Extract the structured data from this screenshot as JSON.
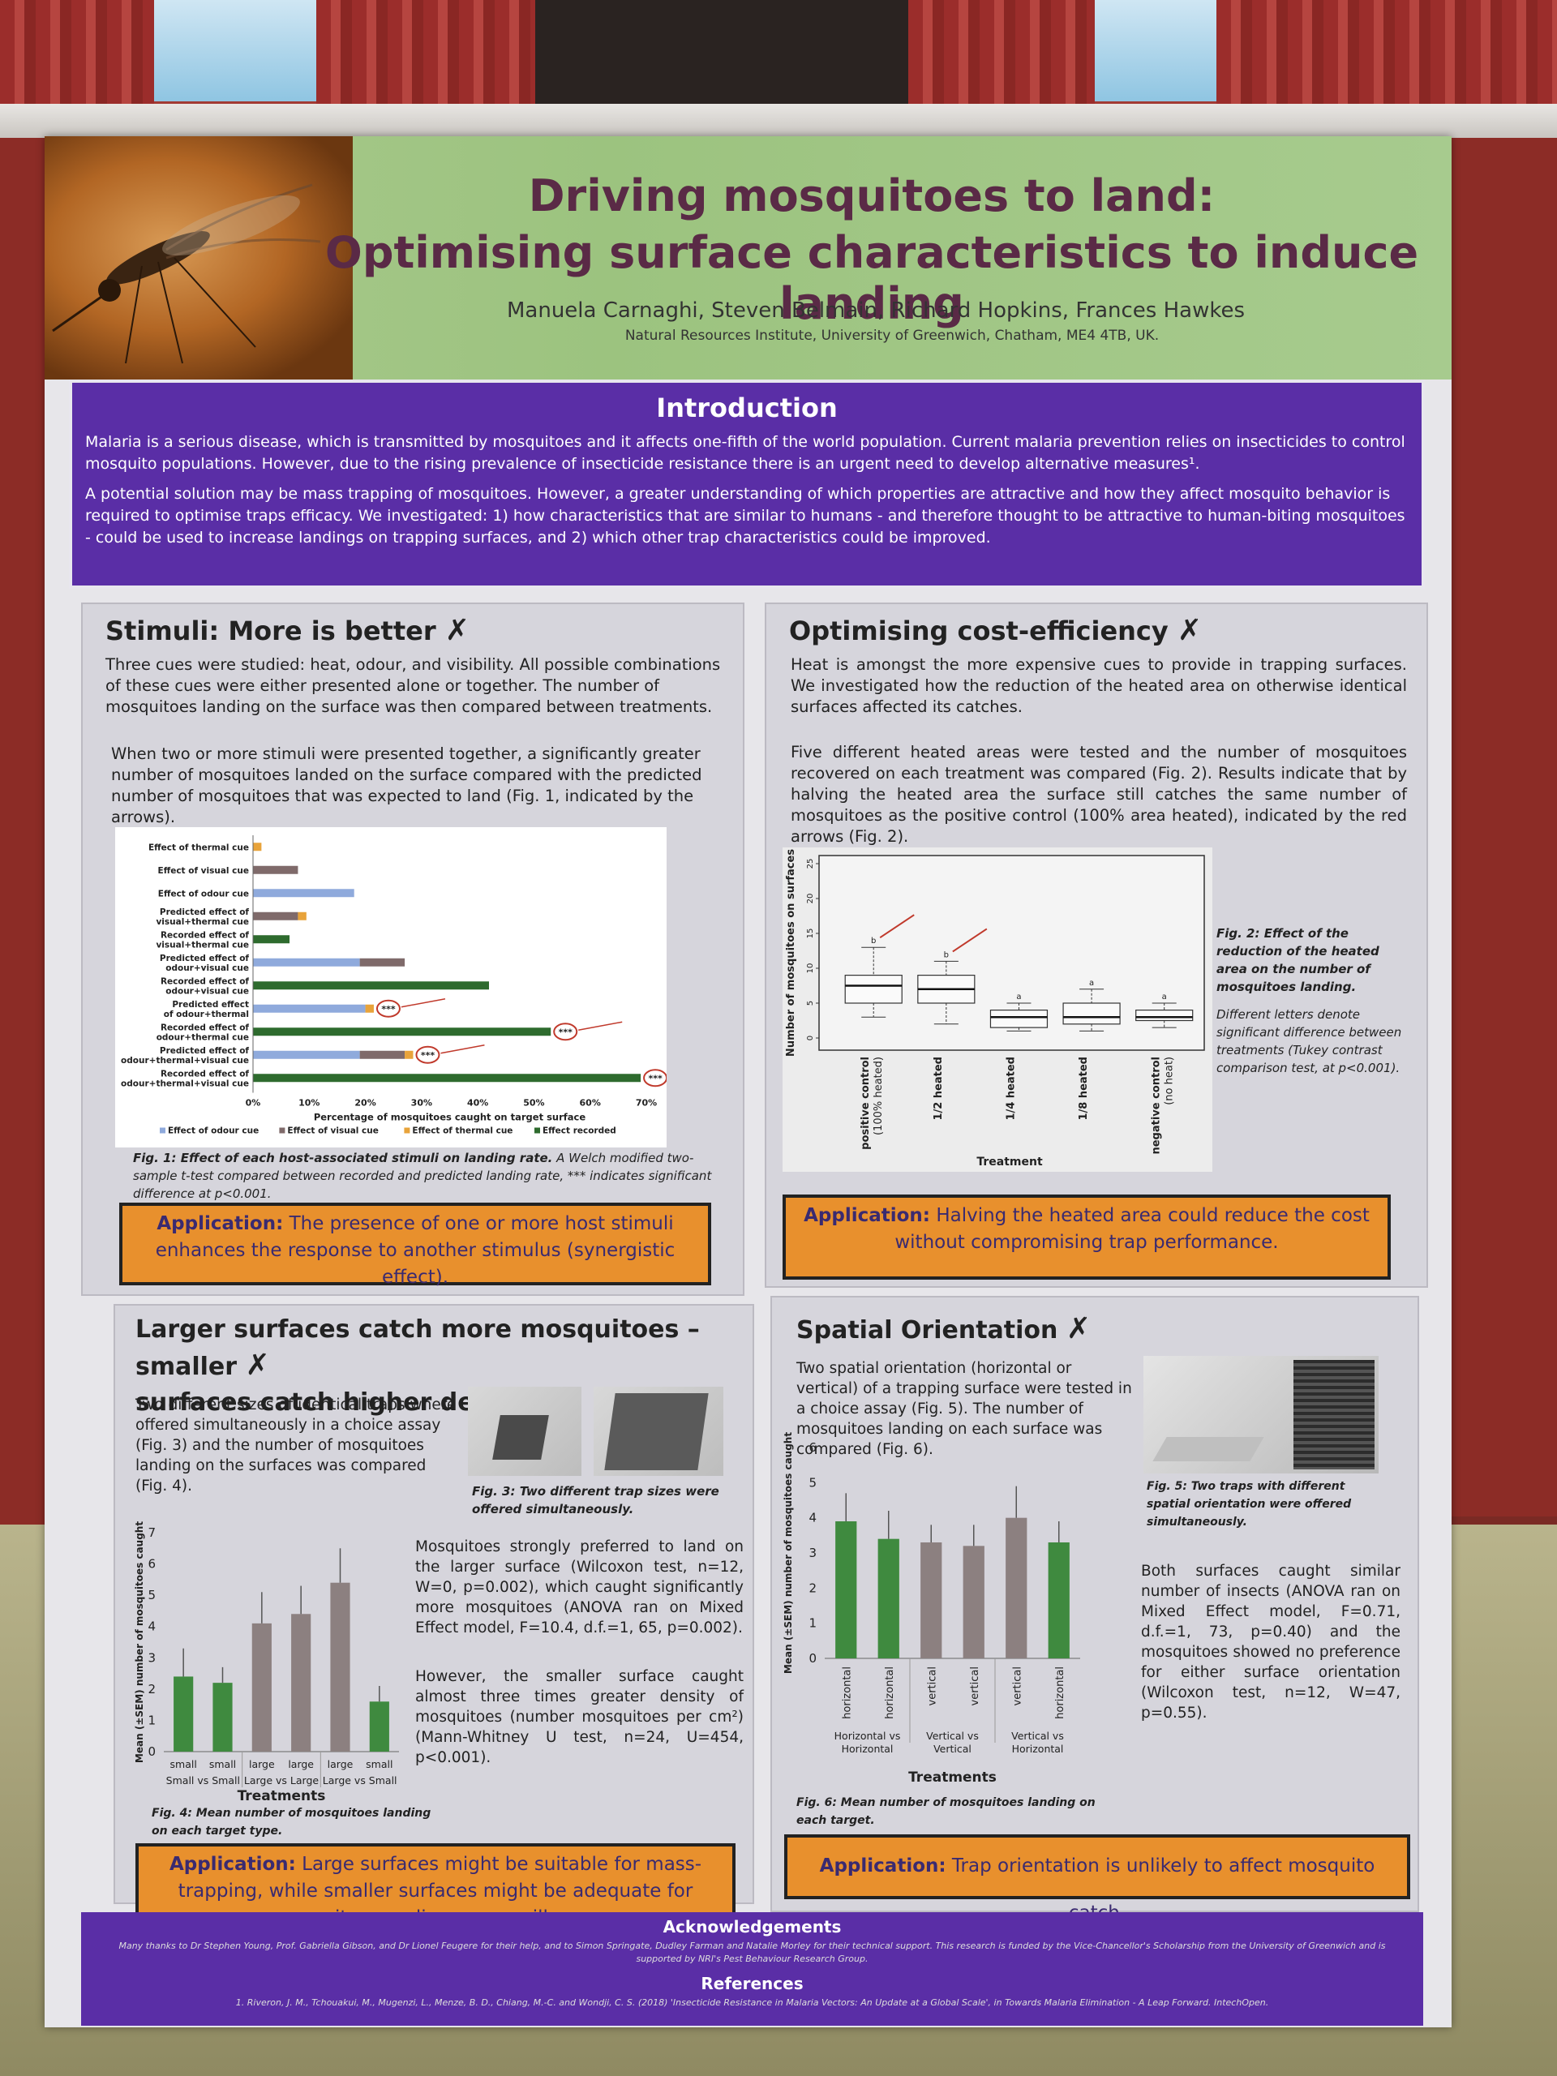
{
  "header": {
    "title_line1": "Driving mosquitoes to land:",
    "title_line2": "Optimising surface characteristics to induce landing",
    "authors": "Manuela Carnaghi, Steven Belmain, Richard Hopkins, Frances Hawkes",
    "affiliation": "Natural Resources Institute, University of Greenwich, Chatham, ME4 4TB, UK."
  },
  "intro": {
    "heading": "Introduction",
    "p1": "Malaria is a serious disease, which is transmitted by mosquitoes and it affects one-fifth of the world population. Current malaria prevention relies on insecticides to control mosquito populations. However, due to the rising prevalence of insecticide resistance there is an urgent need to develop alternative measures¹.",
    "p2": "A potential solution may be mass trapping of mosquitoes. However, a greater understanding of which properties are attractive and how they affect mosquito behavior is required to optimise traps efficacy. We investigated: 1) how characteristics that are similar to humans - and therefore thought to be attractive to human-biting mosquitoes - could be used to increase landings on trapping surfaces, and 2) which other trap characteristics could be improved."
  },
  "stimuli": {
    "title": "Stimuli: More is better",
    "p1": "Three cues were studied: heat, odour, and visibility. All possible combinations of these cues were either presented alone or together. The number of mosquitoes landing on the surface was then compared between treatments.",
    "p2": "When two or more stimuli were presented together, a significantly greater number of mosquitoes landed on the surface compared with the predicted number of mosquitoes that was expected to land (Fig. 1, indicated by the arrows).",
    "caption_label": "Fig. 1: Effect of each host-associated stimuli on landing rate.",
    "caption_text": "A Welch modified two-sample t-test compared between recorded and predicted landing rate, *** indicates significant difference at p<0.001.",
    "app_label": "Application:",
    "app_text": "The presence of one or more host stimuli enhances the response to another stimulus (synergistic effect)."
  },
  "cost": {
    "title": "Optimising cost-efficiency",
    "p1": "Heat is amongst the more expensive cues to provide in trapping surfaces. We investigated how the reduction of the heated area on otherwise identical surfaces affected its catches.",
    "p2": "Five different heated areas were tested and the number of mosquitoes recovered on each treatment was compared (Fig. 2). Results indicate that by halving the heated area the surface still catches the same number of mosquitoes as the positive control (100% area heated), indicated by the red arrows (Fig. 2).",
    "caption1": "Fig. 2: Effect of the reduction of the heated area on the number of mosquitoes landing.",
    "caption2": "Different letters denote significant difference between treatments (Tukey contrast comparison test, at p<0.001).",
    "app_label": "Application:",
    "app_text": "Halving the heated area could reduce the cost without compromising trap performance."
  },
  "size": {
    "title_line1": "Larger surfaces catch more mosquitoes – smaller",
    "title_line2": "surfaces catch higher densities",
    "p1": "Two different sizes of identical traps where offered simultaneously in a choice assay (Fig. 3) and the number of mosquitoes landing on the surfaces was compared (Fig. 4).",
    "fig3_caption": "Fig. 3: Two different trap sizes were offered simultaneously.",
    "p2": "Mosquitoes strongly preferred to land on the larger surface (Wilcoxon test, n=12, W=0, p=0.002), which caught significantly more mosquitoes (ANOVA ran on Mixed Effect model, F=10.4, d.f.=1, 65, p=0.002).",
    "p3": "However, the smaller surface caught almost three times greater density of mosquitoes (number mosquitoes per cm²) (Mann-Whitney U test, n=24, U=454, p<0.001).",
    "fig4_caption": "Fig. 4: Mean number of mosquitoes landing on each target type.",
    "app_label": "Application:",
    "app_text": "Large surfaces might be suitable for mass-trapping, while smaller surfaces might be adequate for mosquito sampling or surveillance."
  },
  "orient": {
    "title": "Spatial Orientation",
    "p1": "Two spatial orientation (horizontal or vertical) of a trapping surface were tested in a choice assay (Fig. 5). The number of mosquitoes landing on each surface was compared (Fig. 6).",
    "fig5_caption": "Fig. 5: Two traps with different spatial orientation were offered simultaneously.",
    "p2": "Both surfaces caught similar number of insects (ANOVA ran on Mixed Effect model, F=0.71, d.f.=1, 73, p=0.40) and the mosquitoes showed no preference for either surface orientation (Wilcoxon test, n=12, W=47, p=0.55).",
    "fig6_caption": "Fig. 6: Mean number of mosquitoes landing on each target.",
    "app_label": "Application:",
    "app_text": "Trap orientation is unlikely to affect mosquito catch."
  },
  "footer": {
    "ack_heading": "Acknowledgements",
    "ack_text": "Many thanks to Dr Stephen Young, Prof. Gabriella Gibson, and Dr Lionel Feugere for their help, and to Simon Springate, Dudley Farman and Natalie Morley for their technical support. This research is funded by the Vice-Chancellor's Scholarship from the University of Greenwich and is supported by NRI's Pest Behaviour Research Group.",
    "ref_heading": "References",
    "ref_text": "1. Riveron, J. M., Tchouakui, M., Mugenzi, L., Menze, B. D., Chiang, M.-C. and Wondji, C. S. (2018) 'Insecticide Resistance in Malaria Vectors: An Update at a Global Scale', in Towards Malaria Elimination - A Leap Forward. IntechOpen."
  },
  "chart_data": [
    {
      "type": "bar",
      "orientation": "horizontal",
      "stacked": true,
      "categories": [
        "Effect of thermal cue",
        "Effect of visual cue",
        "Effect of odour cue",
        "Predicted effect of visual+thermal cue",
        "Recorded effect of visual+thermal cue",
        "Predicted effect of odour+visual cue",
        "Recorded effect of odour+visual cue",
        "Predicted effect of odour+thermal",
        "Recorded effect of odour+thermal cue",
        "Predicted effect of odour+thermal+visual cue",
        "Recorded effect of odour+thermal+visual cue"
      ],
      "series": [
        {
          "name": "Effect of odour cue",
          "color": "#8faadc",
          "values": [
            0,
            0,
            18,
            0,
            0,
            19,
            0,
            20,
            0,
            19,
            0
          ]
        },
        {
          "name": "Effect of visual cue",
          "color": "#7f6a6a",
          "values": [
            0,
            8,
            0,
            8,
            0,
            8,
            0,
            0,
            0,
            8,
            0
          ]
        },
        {
          "name": "Effect of thermal cue",
          "color": "#e8a33a",
          "values": [
            1.5,
            0,
            0,
            1.5,
            0,
            0,
            0,
            1.5,
            0,
            1.5,
            0
          ]
        },
        {
          "name": "Effect recorded",
          "color": "#2e6b2e",
          "values": [
            0,
            0,
            0,
            0,
            6.5,
            0,
            42,
            0,
            53,
            0,
            69
          ]
        }
      ],
      "significance": [
        "",
        "",
        "",
        "",
        "",
        "",
        "",
        "***",
        "",
        "***",
        ""
      ],
      "significance_recorded": [
        "",
        "",
        "",
        "",
        "",
        "",
        "",
        "",
        "***",
        "",
        "***"
      ],
      "xlabel": "Percentage of mosquitoes caught on target surface",
      "xticks": [
        "0%",
        "10%",
        "20%",
        "30%",
        "40%",
        "50%",
        "60%",
        "70%"
      ],
      "xlim": [
        0,
        70
      ]
    },
    {
      "type": "box",
      "categories": [
        "positive control\n(100% heated)",
        "1/2 heated",
        "1/4 heated",
        "1/8 heated",
        "negative control\n(no heat)"
      ],
      "boxes": [
        {
          "min": 3,
          "q1": 5,
          "median": 7.5,
          "q3": 9,
          "max": 13,
          "letter": "b"
        },
        {
          "min": 2,
          "q1": 5,
          "median": 7,
          "q3": 9,
          "max": 11,
          "letter": "b"
        },
        {
          "min": 1,
          "q1": 1.5,
          "median": 3,
          "q3": 4,
          "max": 5,
          "letter": "a"
        },
        {
          "min": 1,
          "q1": 2,
          "median": 3,
          "q3": 5,
          "max": 7,
          "letter": "a"
        },
        {
          "min": 1.5,
          "q1": 2.5,
          "median": 3,
          "q3": 4,
          "max": 5,
          "letter": "a"
        }
      ],
      "ylabel": "Number of mosquitoes on surfaces",
      "xlabel": "Treatment",
      "yticks": [
        "0",
        "5",
        "10",
        "15",
        "20",
        "25"
      ],
      "ylim": [
        0,
        25
      ]
    },
    {
      "type": "bar",
      "categories": [
        "small",
        "small",
        "large",
        "large",
        "large",
        "small"
      ],
      "groups": [
        "Small vs Small",
        "Large vs Large",
        "Large vs Small"
      ],
      "values": [
        2.4,
        2.2,
        4.1,
        4.4,
        5.4,
        1.6
      ],
      "errors": [
        0.9,
        0.5,
        1.0,
        0.9,
        1.1,
        0.5
      ],
      "colors": [
        "#3f8a3f",
        "#3f8a3f",
        "#8c8080",
        "#8c8080",
        "#8c8080",
        "#3f8a3f"
      ],
      "ylabel": "Mean (±SEM) number of mosquitoes caught",
      "xlabel": "Treatments",
      "yticks": [
        "0",
        "1",
        "2",
        "3",
        "4",
        "5",
        "6",
        "7"
      ],
      "ylim": [
        0,
        7
      ]
    },
    {
      "type": "bar",
      "categories": [
        "horizontal",
        "horizontal",
        "vertical",
        "vertical",
        "vertical",
        "horizontal"
      ],
      "groups": [
        "Horizontal vs Horizontal",
        "Vertical vs Vertical",
        "Vertical vs Horizontal"
      ],
      "values": [
        3.9,
        3.4,
        3.3,
        3.2,
        4.0,
        3.3
      ],
      "errors": [
        0.8,
        0.8,
        0.5,
        0.6,
        0.9,
        0.6
      ],
      "colors": [
        "#3f8a3f",
        "#3f8a3f",
        "#8c8080",
        "#8c8080",
        "#8c8080",
        "#3f8a3f"
      ],
      "ylabel": "Mean (±SEM) number of mosquitoes caught",
      "xlabel": "Treatments",
      "yticks": [
        "0",
        "1",
        "2",
        "3",
        "4",
        "5",
        "6"
      ],
      "ylim": [
        0,
        6
      ]
    }
  ]
}
